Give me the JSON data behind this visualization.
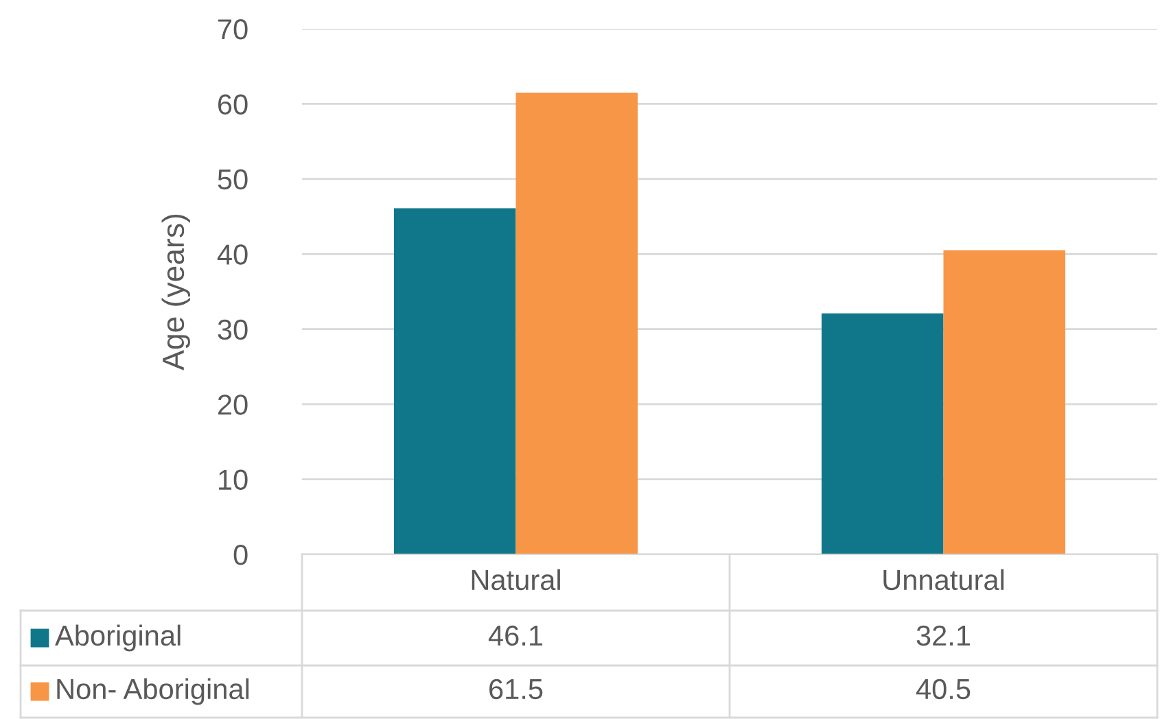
{
  "chart_data": {
    "type": "bar",
    "ylabel": "Age (years)",
    "categories": [
      "Natural",
      "Unnatural"
    ],
    "series": [
      {
        "name": "Aboriginal",
        "color": "#10778a",
        "values": [
          46.1,
          32.1
        ]
      },
      {
        "name": "Non- Aboriginal",
        "color": "#f79646",
        "values": [
          61.5,
          40.5
        ]
      }
    ],
    "ylim": [
      0,
      70
    ],
    "yticks": [
      0,
      10,
      20,
      30,
      40,
      50,
      60,
      70
    ],
    "grid": "y",
    "data_labels": true,
    "legend": "bottom left"
  }
}
